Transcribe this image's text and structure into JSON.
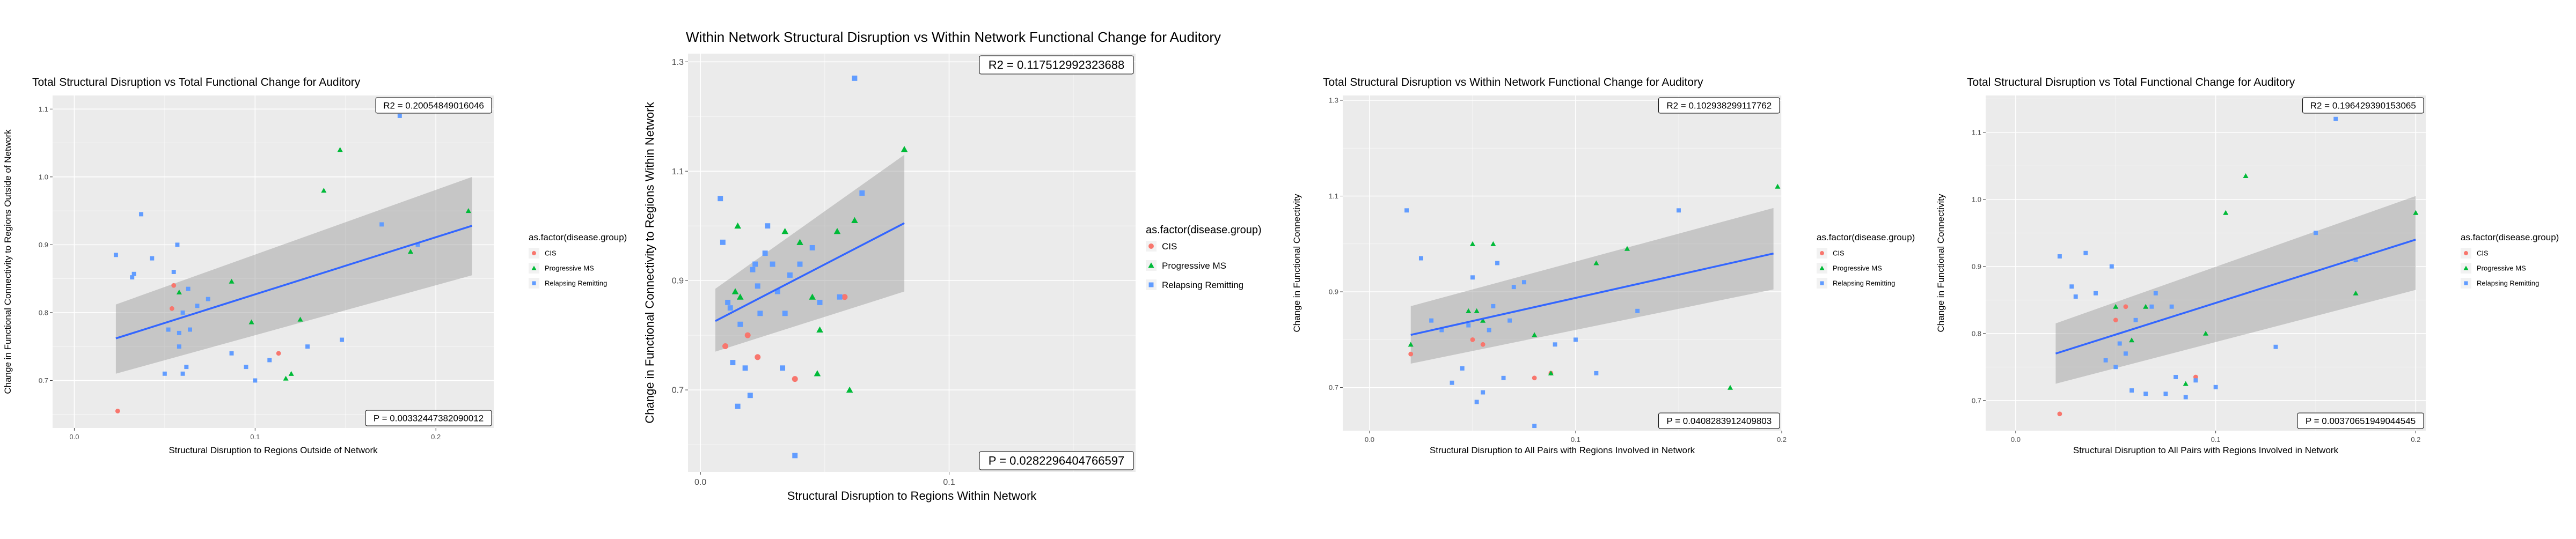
{
  "colors": {
    "CIS": "#F8766D",
    "Progressive MS": "#00BA38",
    "Relapsing Remitting": "#619CFF",
    "panel_bg": "#EBEBEB",
    "grid": "#FFFFFF",
    "fit_line": "#3366FF",
    "ribbon": "#999999"
  },
  "chart_data": [
    {
      "type": "scatter",
      "title": "Total Structural Disruption vs Total Functional Change for Auditory",
      "xlabel": "Structural Disruption to Regions Outside of Network",
      "ylabel": "Change in Functional Connectivity to Regions Outside of Network",
      "xlim": [
        -0.012,
        0.232
      ],
      "ylim": [
        0.63,
        1.12
      ],
      "x_ticks": [
        {
          "v": 0.0,
          "label": "0.0"
        },
        {
          "v": 0.1,
          "label": "0.1"
        },
        {
          "v": 0.2,
          "label": "0.2"
        }
      ],
      "y_ticks": [
        {
          "v": 0.7,
          "label": "0.7"
        },
        {
          "v": 0.8,
          "label": "0.8"
        },
        {
          "v": 0.9,
          "label": "0.9"
        },
        {
          "v": 1.0,
          "label": "1.0"
        },
        {
          "v": 1.1,
          "label": "1.1"
        }
      ],
      "r2_label": "R2 = 0.20054849016046",
      "p_label": "P = 0.00332447382090012",
      "legend": {
        "title": "as.factor(disease.group)",
        "entries": [
          "CIS",
          "Progressive MS",
          "Relapsing Remitting"
        ],
        "position": "right"
      },
      "fit": {
        "x": [
          0.023,
          0.22
        ],
        "y": [
          0.762,
          0.928
        ],
        "lower": [
          0.71,
          0.855
        ],
        "upper": [
          0.812,
          1.0
        ]
      },
      "series": [
        {
          "name": "CIS",
          "points": [
            [
              0.024,
              0.655
            ],
            [
              0.054,
              0.806
            ],
            [
              0.055,
              0.84
            ],
            [
              0.113,
              0.74
            ]
          ]
        },
        {
          "name": "Progressive MS",
          "points": [
            [
              0.058,
              0.83
            ],
            [
              0.087,
              0.846
            ],
            [
              0.098,
              0.786
            ],
            [
              0.117,
              0.703
            ],
            [
              0.12,
              0.71
            ],
            [
              0.125,
              0.79
            ],
            [
              0.138,
              0.98
            ],
            [
              0.147,
              1.04
            ],
            [
              0.186,
              0.89
            ],
            [
              0.218,
              0.95
            ]
          ]
        },
        {
          "name": "Relapsing Remitting",
          "points": [
            [
              0.023,
              0.885
            ],
            [
              0.032,
              0.852
            ],
            [
              0.033,
              0.857
            ],
            [
              0.037,
              0.945
            ],
            [
              0.043,
              0.88
            ],
            [
              0.05,
              0.71
            ],
            [
              0.052,
              0.775
            ],
            [
              0.055,
              0.86
            ],
            [
              0.057,
              0.9
            ],
            [
              0.058,
              0.77
            ],
            [
              0.058,
              0.75
            ],
            [
              0.06,
              0.71
            ],
            [
              0.06,
              0.8
            ],
            [
              0.062,
              0.72
            ],
            [
              0.063,
              0.835
            ],
            [
              0.064,
              0.775
            ],
            [
              0.068,
              0.81
            ],
            [
              0.074,
              0.82
            ],
            [
              0.087,
              0.74
            ],
            [
              0.095,
              0.72
            ],
            [
              0.1,
              0.7
            ],
            [
              0.108,
              0.73
            ],
            [
              0.129,
              0.75
            ],
            [
              0.148,
              0.76
            ],
            [
              0.17,
              0.93
            ],
            [
              0.18,
              1.09
            ],
            [
              0.19,
              0.9
            ]
          ]
        }
      ]
    },
    {
      "type": "scatter",
      "title": "Within Network Structural Disruption vs Within Network Functional Change for Auditory",
      "xlabel": "Structural Disruption to Regions Within Network",
      "ylabel": "Change in Functional Connectivity to Regions Within Network",
      "xlim": [
        -0.005,
        0.175
      ],
      "ylim": [
        0.55,
        1.315
      ],
      "x_ticks": [
        {
          "v": 0.0,
          "label": "0.0"
        },
        {
          "v": 0.1,
          "label": "0.1"
        }
      ],
      "y_ticks": [
        {
          "v": 0.7,
          "label": "0.7"
        },
        {
          "v": 0.9,
          "label": "0.9"
        },
        {
          "v": 1.1,
          "label": "1.1"
        },
        {
          "v": 1.3,
          "label": "1.3"
        }
      ],
      "r2_label": "R2 = 0.117512992323688",
      "p_label": "P = 0.0282296404766597",
      "legend": {
        "title": "as.factor(disease.group)",
        "entries": [
          "CIS",
          "Progressive MS",
          "Relapsing Remitting"
        ],
        "position": "right"
      },
      "fit": {
        "x": [
          0.006,
          0.082
        ],
        "y": [
          0.826,
          1.005
        ],
        "lower": [
          0.77,
          0.88
        ],
        "upper": [
          0.885,
          1.13
        ]
      },
      "series": [
        {
          "name": "CIS",
          "points": [
            [
              0.01,
              0.78
            ],
            [
              0.019,
              0.8
            ],
            [
              0.023,
              0.76
            ],
            [
              0.038,
              0.72
            ],
            [
              0.058,
              0.87
            ]
          ]
        },
        {
          "name": "Progressive MS",
          "points": [
            [
              0.014,
              0.88
            ],
            [
              0.015,
              1.0
            ],
            [
              0.016,
              0.87
            ],
            [
              0.034,
              0.99
            ],
            [
              0.04,
              0.97
            ],
            [
              0.045,
              0.87
            ],
            [
              0.047,
              0.73
            ],
            [
              0.048,
              0.81
            ],
            [
              0.055,
              0.99
            ],
            [
              0.06,
              0.7
            ],
            [
              0.062,
              1.01
            ],
            [
              0.082,
              1.14
            ]
          ]
        },
        {
          "name": "Relapsing Remitting",
          "points": [
            [
              0.008,
              1.05
            ],
            [
              0.009,
              0.97
            ],
            [
              0.011,
              0.86
            ],
            [
              0.012,
              0.85
            ],
            [
              0.013,
              0.75
            ],
            [
              0.015,
              0.67
            ],
            [
              0.016,
              0.82
            ],
            [
              0.018,
              0.74
            ],
            [
              0.02,
              0.69
            ],
            [
              0.021,
              0.92
            ],
            [
              0.022,
              0.93
            ],
            [
              0.023,
              0.89
            ],
            [
              0.024,
              0.84
            ],
            [
              0.026,
              0.95
            ],
            [
              0.027,
              1.0
            ],
            [
              0.029,
              0.93
            ],
            [
              0.031,
              0.88
            ],
            [
              0.033,
              0.74
            ],
            [
              0.034,
              0.84
            ],
            [
              0.036,
              0.91
            ],
            [
              0.038,
              0.58
            ],
            [
              0.04,
              0.93
            ],
            [
              0.045,
              0.96
            ],
            [
              0.048,
              0.86
            ],
            [
              0.056,
              0.87
            ],
            [
              0.062,
              1.27
            ],
            [
              0.065,
              1.06
            ]
          ]
        }
      ]
    },
    {
      "type": "scatter",
      "title": "Total Structural Disruption vs Within Network Functional Change for Auditory",
      "xlabel": "Structural Disruption to All Pairs with Regions Involved in Network",
      "ylabel": "Change in Functional Connectivity",
      "xlim": [
        -0.013,
        0.2
      ],
      "ylim": [
        0.61,
        1.31
      ],
      "x_ticks": [
        {
          "v": 0.0,
          "label": "0.0"
        },
        {
          "v": 0.1,
          "label": "0.1"
        },
        {
          "v": 0.2,
          "label": "0.2"
        }
      ],
      "y_ticks": [
        {
          "v": 0.7,
          "label": "0.7"
        },
        {
          "v": 0.9,
          "label": "0.9"
        },
        {
          "v": 1.1,
          "label": "1.1"
        },
        {
          "v": 1.3,
          "label": "1.3"
        }
      ],
      "r2_label": "R2 = 0.102938299117762",
      "p_label": "P = 0.0408283912409803",
      "legend": {
        "title": "as.factor(disease.group)",
        "entries": [
          "CIS",
          "Progressive MS",
          "Relapsing Remitting"
        ],
        "position": "right"
      },
      "fit": {
        "x": [
          0.02,
          0.196
        ],
        "y": [
          0.81,
          0.98
        ],
        "lower": [
          0.75,
          0.905
        ],
        "upper": [
          0.87,
          1.075
        ]
      },
      "series": [
        {
          "name": "CIS",
          "points": [
            [
              0.02,
              0.77
            ],
            [
              0.05,
              0.8
            ],
            [
              0.055,
              0.79
            ],
            [
              0.08,
              0.72
            ],
            [
              0.088,
              0.73
            ]
          ]
        },
        {
          "name": "Progressive MS",
          "points": [
            [
              0.02,
              0.79
            ],
            [
              0.048,
              0.86
            ],
            [
              0.05,
              1.0
            ],
            [
              0.052,
              0.86
            ],
            [
              0.055,
              0.84
            ],
            [
              0.06,
              1.0
            ],
            [
              0.08,
              0.81
            ],
            [
              0.088,
              0.73
            ],
            [
              0.11,
              0.96
            ],
            [
              0.125,
              0.99
            ],
            [
              0.175,
              0.7
            ],
            [
              0.198,
              1.12
            ]
          ]
        },
        {
          "name": "Relapsing Remitting",
          "points": [
            [
              0.018,
              1.07
            ],
            [
              0.025,
              0.97
            ],
            [
              0.03,
              0.84
            ],
            [
              0.035,
              0.82
            ],
            [
              0.04,
              0.71
            ],
            [
              0.045,
              0.74
            ],
            [
              0.048,
              0.83
            ],
            [
              0.05,
              0.93
            ],
            [
              0.052,
              0.67
            ],
            [
              0.055,
              0.69
            ],
            [
              0.058,
              0.82
            ],
            [
              0.06,
              0.87
            ],
            [
              0.062,
              0.96
            ],
            [
              0.065,
              0.72
            ],
            [
              0.068,
              0.84
            ],
            [
              0.07,
              0.91
            ],
            [
              0.075,
              0.92
            ],
            [
              0.08,
              0.62
            ],
            [
              0.09,
              0.79
            ],
            [
              0.1,
              0.8
            ],
            [
              0.11,
              0.73
            ],
            [
              0.13,
              0.86
            ],
            [
              0.15,
              1.07
            ],
            [
              0.155,
              1.28
            ]
          ]
        }
      ]
    },
    {
      "type": "scatter",
      "title": "Total Structural Disruption vs Total Functional Change for Auditory",
      "xlabel": "Structural Disruption to All Pairs with Regions Involved in Network",
      "ylabel": "Change in Functional Connectivity",
      "xlim": [
        -0.015,
        0.205
      ],
      "ylim": [
        0.655,
        1.155
      ],
      "x_ticks": [
        {
          "v": 0.0,
          "label": "0.0"
        },
        {
          "v": 0.1,
          "label": "0.1"
        },
        {
          "v": 0.2,
          "label": "0.2"
        }
      ],
      "y_ticks": [
        {
          "v": 0.7,
          "label": "0.7"
        },
        {
          "v": 0.8,
          "label": "0.8"
        },
        {
          "v": 0.9,
          "label": "0.9"
        },
        {
          "v": 1.0,
          "label": "1.0"
        },
        {
          "v": 1.1,
          "label": "1.1"
        }
      ],
      "r2_label": "R2 = 0.196429390153065",
      "p_label": "P = 0.00370651949044545",
      "legend": {
        "title": "as.factor(disease.group)",
        "entries": [
          "CIS",
          "Progressive MS",
          "Relapsing Remitting"
        ],
        "position": "right"
      },
      "fit": {
        "x": [
          0.02,
          0.2
        ],
        "y": [
          0.77,
          0.94
        ],
        "lower": [
          0.725,
          0.865
        ],
        "upper": [
          0.815,
          1.005
        ]
      },
      "series": [
        {
          "name": "CIS",
          "points": [
            [
              0.022,
              0.68
            ],
            [
              0.05,
              0.82
            ],
            [
              0.055,
              0.84
            ],
            [
              0.09,
              0.735
            ]
          ]
        },
        {
          "name": "Progressive MS",
          "points": [
            [
              0.05,
              0.84
            ],
            [
              0.058,
              0.79
            ],
            [
              0.065,
              0.84
            ],
            [
              0.085,
              0.725
            ],
            [
              0.095,
              0.8
            ],
            [
              0.105,
              0.98
            ],
            [
              0.115,
              1.035
            ],
            [
              0.17,
              0.86
            ],
            [
              0.2,
              0.98
            ]
          ]
        },
        {
          "name": "Relapsing Remitting",
          "points": [
            [
              0.022,
              0.915
            ],
            [
              0.028,
              0.87
            ],
            [
              0.03,
              0.855
            ],
            [
              0.035,
              0.92
            ],
            [
              0.04,
              0.86
            ],
            [
              0.045,
              0.76
            ],
            [
              0.048,
              0.9
            ],
            [
              0.05,
              0.75
            ],
            [
              0.052,
              0.785
            ],
            [
              0.055,
              0.77
            ],
            [
              0.058,
              0.715
            ],
            [
              0.06,
              0.82
            ],
            [
              0.065,
              0.71
            ],
            [
              0.068,
              0.84
            ],
            [
              0.07,
              0.86
            ],
            [
              0.075,
              0.71
            ],
            [
              0.078,
              0.84
            ],
            [
              0.08,
              0.735
            ],
            [
              0.085,
              0.705
            ],
            [
              0.09,
              0.73
            ],
            [
              0.1,
              0.72
            ],
            [
              0.13,
              0.78
            ],
            [
              0.15,
              0.95
            ],
            [
              0.16,
              1.12
            ],
            [
              0.17,
              0.91
            ]
          ]
        }
      ]
    }
  ]
}
